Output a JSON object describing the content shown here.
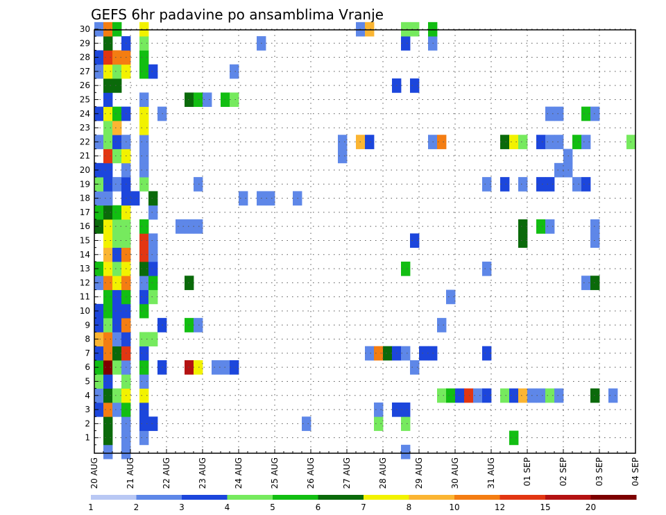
{
  "chart_data": {
    "type": "heatmap",
    "title": "GEFS 6hr padavine po ansamblima Vranje",
    "xlabel": "",
    "ylabel": "",
    "x_tick_labels": [
      "20 AUG",
      "21 AUG",
      "22 AUG",
      "23 AUG",
      "24 AUG",
      "25 AUG",
      "26 AUG",
      "27 AUG",
      "28 AUG",
      "29 AUG",
      "30 AUG",
      "31 AUG",
      "01 SEP",
      "02 SEP",
      "03 SEP",
      "04 SEP"
    ],
    "x_range_steps": [
      0,
      60
    ],
    "steps_per_day": 4,
    "y_range": [
      0,
      30
    ],
    "y_ticks": [
      1,
      2,
      3,
      4,
      5,
      6,
      7,
      8,
      9,
      10,
      11,
      12,
      13,
      14,
      15,
      16,
      17,
      18,
      19,
      20,
      21,
      22,
      23,
      24,
      25,
      26,
      27,
      28,
      29,
      30
    ],
    "grid": true,
    "legend_position": "bottom",
    "colorbar": {
      "labels": [
        "1",
        "2",
        "3",
        "4",
        "5",
        "6",
        "7",
        "8",
        "10",
        "12",
        "15",
        "20"
      ],
      "colors": [
        "#b9c8f4",
        "#5e87e8",
        "#1c46dc",
        "#76ea5e",
        "#12be12",
        "#0a6a0a",
        "#f2f200",
        "#fbb532",
        "#f47d12",
        "#e23612",
        "#b41212",
        "#7d0000"
      ]
    },
    "cells_by_member": {
      "30": [
        [
          0,
          1
        ],
        [
          1,
          8
        ],
        [
          2,
          4
        ],
        [
          5,
          6
        ],
        [
          29,
          1
        ],
        [
          30,
          7
        ],
        [
          34,
          3
        ],
        [
          35,
          3
        ],
        [
          37,
          4
        ]
      ],
      "29": [
        [
          1,
          5
        ],
        [
          3,
          2
        ],
        [
          5,
          3
        ],
        [
          18,
          1
        ],
        [
          34,
          2
        ],
        [
          37,
          1
        ]
      ],
      "28": [
        [
          0,
          2
        ],
        [
          1,
          9
        ],
        [
          2,
          8
        ],
        [
          3,
          8
        ],
        [
          5,
          4
        ]
      ],
      "27": [
        [
          0,
          1
        ],
        [
          1,
          6
        ],
        [
          2,
          3
        ],
        [
          3,
          6
        ],
        [
          5,
          4
        ],
        [
          6,
          2
        ],
        [
          15,
          1
        ]
      ],
      "26": [
        [
          1,
          5
        ],
        [
          2,
          5
        ],
        [
          33,
          2
        ],
        [
          35,
          2
        ]
      ],
      "25": [
        [
          1,
          2
        ],
        [
          5,
          1
        ],
        [
          10,
          5
        ],
        [
          11,
          4
        ],
        [
          12,
          1
        ],
        [
          14,
          4
        ],
        [
          15,
          3
        ]
      ],
      "24": [
        [
          0,
          2
        ],
        [
          1,
          6
        ],
        [
          2,
          4
        ],
        [
          3,
          2
        ],
        [
          5,
          6
        ],
        [
          7,
          1
        ],
        [
          50,
          1
        ],
        [
          51,
          1
        ],
        [
          54,
          4
        ],
        [
          55,
          1
        ]
      ],
      "23": [
        [
          1,
          3
        ],
        [
          2,
          7
        ],
        [
          5,
          6
        ]
      ],
      "22": [
        [
          0,
          1
        ],
        [
          1,
          3
        ],
        [
          2,
          2
        ],
        [
          3,
          1
        ],
        [
          5,
          1
        ],
        [
          27,
          1
        ],
        [
          29,
          7
        ],
        [
          30,
          2
        ],
        [
          37,
          1
        ],
        [
          38,
          8
        ],
        [
          45,
          5
        ],
        [
          46,
          6
        ],
        [
          47,
          3
        ],
        [
          49,
          2
        ],
        [
          50,
          1
        ],
        [
          51,
          1
        ],
        [
          53,
          4
        ],
        [
          54,
          1
        ],
        [
          59,
          3
        ]
      ],
      "21": [
        [
          1,
          9
        ],
        [
          2,
          3
        ],
        [
          3,
          6
        ],
        [
          5,
          1
        ],
        [
          27,
          1
        ],
        [
          52,
          1
        ]
      ],
      "20": [
        [
          0,
          2
        ],
        [
          1,
          2
        ],
        [
          3,
          1
        ],
        [
          5,
          1
        ],
        [
          51,
          1
        ],
        [
          52,
          1
        ]
      ],
      "19": [
        [
          0,
          3
        ],
        [
          1,
          2
        ],
        [
          2,
          1
        ],
        [
          3,
          2
        ],
        [
          5,
          3
        ],
        [
          11,
          1
        ],
        [
          43,
          1
        ],
        [
          45,
          2
        ],
        [
          47,
          1
        ],
        [
          49,
          2
        ],
        [
          50,
          2
        ],
        [
          53,
          1
        ],
        [
          54,
          2
        ]
      ],
      "18": [
        [
          0,
          1
        ],
        [
          1,
          1
        ],
        [
          3,
          2
        ],
        [
          4,
          2
        ],
        [
          6,
          5
        ],
        [
          16,
          1
        ],
        [
          18,
          1
        ],
        [
          19,
          1
        ],
        [
          22,
          1
        ]
      ],
      "17": [
        [
          0,
          4
        ],
        [
          1,
          5
        ],
        [
          2,
          4
        ],
        [
          3,
          6
        ],
        [
          6,
          1
        ]
      ],
      "16": [
        [
          0,
          5
        ],
        [
          1,
          6
        ],
        [
          2,
          3
        ],
        [
          3,
          3
        ],
        [
          5,
          4
        ],
        [
          9,
          1
        ],
        [
          10,
          1
        ],
        [
          11,
          1
        ],
        [
          47,
          5
        ],
        [
          49,
          4
        ],
        [
          50,
          1
        ],
        [
          55,
          1
        ]
      ],
      "15": [
        [
          1,
          6
        ],
        [
          2,
          3
        ],
        [
          3,
          3
        ],
        [
          5,
          9
        ],
        [
          6,
          1
        ],
        [
          35,
          2
        ],
        [
          47,
          5
        ],
        [
          55,
          1
        ]
      ],
      "14": [
        [
          1,
          7
        ],
        [
          2,
          2
        ],
        [
          3,
          8
        ],
        [
          5,
          9
        ],
        [
          6,
          1
        ]
      ],
      "13": [
        [
          0,
          4
        ],
        [
          1,
          6
        ],
        [
          2,
          3
        ],
        [
          3,
          6
        ],
        [
          5,
          5
        ],
        [
          6,
          2
        ],
        [
          34,
          4
        ],
        [
          43,
          1
        ]
      ],
      "12": [
        [
          0,
          1
        ],
        [
          1,
          8
        ],
        [
          2,
          6
        ],
        [
          3,
          8
        ],
        [
          5,
          1
        ],
        [
          6,
          4
        ],
        [
          10,
          5
        ],
        [
          54,
          1
        ],
        [
          55,
          5
        ]
      ],
      "11": [
        [
          1,
          4
        ],
        [
          2,
          2
        ],
        [
          3,
          4
        ],
        [
          5,
          2
        ],
        [
          6,
          3
        ],
        [
          39,
          1
        ]
      ],
      "10": [
        [
          0,
          2
        ],
        [
          1,
          4
        ],
        [
          2,
          2
        ],
        [
          3,
          2
        ],
        [
          5,
          4
        ]
      ],
      "9": [
        [
          0,
          2
        ],
        [
          1,
          3
        ],
        [
          2,
          2
        ],
        [
          3,
          8
        ],
        [
          7,
          2
        ],
        [
          10,
          4
        ],
        [
          11,
          1
        ],
        [
          38,
          1
        ]
      ],
      "8": [
        [
          0,
          7
        ],
        [
          1,
          8
        ],
        [
          2,
          1
        ],
        [
          3,
          2
        ],
        [
          5,
          3
        ],
        [
          6,
          3
        ]
      ],
      "7": [
        [
          0,
          2
        ],
        [
          1,
          8
        ],
        [
          2,
          5
        ],
        [
          3,
          9
        ],
        [
          5,
          2
        ],
        [
          30,
          1
        ],
        [
          31,
          8
        ],
        [
          32,
          5
        ],
        [
          33,
          2
        ],
        [
          34,
          1
        ],
        [
          36,
          2
        ],
        [
          37,
          2
        ],
        [
          43,
          2
        ]
      ],
      "6": [
        [
          0,
          4
        ],
        [
          1,
          11
        ],
        [
          2,
          3
        ],
        [
          3,
          1
        ],
        [
          5,
          4
        ],
        [
          7,
          2
        ],
        [
          10,
          10
        ],
        [
          11,
          6
        ],
        [
          13,
          1
        ],
        [
          14,
          1
        ],
        [
          15,
          2
        ],
        [
          35,
          1
        ]
      ],
      "5": [
        [
          0,
          3
        ],
        [
          1,
          2
        ],
        [
          3,
          3
        ],
        [
          5,
          1
        ]
      ],
      "4": [
        [
          0,
          1
        ],
        [
          1,
          5
        ],
        [
          2,
          3
        ],
        [
          3,
          6
        ],
        [
          5,
          6
        ],
        [
          38,
          3
        ],
        [
          39,
          4
        ],
        [
          40,
          2
        ],
        [
          41,
          9
        ],
        [
          42,
          1
        ],
        [
          43,
          2
        ],
        [
          45,
          3
        ],
        [
          46,
          2
        ],
        [
          47,
          7
        ],
        [
          48,
          1
        ],
        [
          49,
          1
        ],
        [
          50,
          3
        ],
        [
          51,
          1
        ],
        [
          55,
          5
        ],
        [
          57,
          1
        ]
      ],
      "3": [
        [
          0,
          2
        ],
        [
          1,
          8
        ],
        [
          2,
          1
        ],
        [
          3,
          4
        ],
        [
          5,
          2
        ],
        [
          31,
          1
        ],
        [
          33,
          2
        ],
        [
          34,
          2
        ]
      ],
      "2": [
        [
          1,
          5
        ],
        [
          3,
          1
        ],
        [
          5,
          2
        ],
        [
          6,
          2
        ],
        [
          23,
          1
        ],
        [
          31,
          3
        ],
        [
          34,
          3
        ]
      ],
      "1": [
        [
          1,
          5
        ],
        [
          3,
          1
        ],
        [
          5,
          1
        ],
        [
          46,
          4
        ]
      ],
      "0": [
        [
          1,
          1
        ],
        [
          3,
          1
        ],
        [
          34,
          1
        ]
      ]
    }
  }
}
